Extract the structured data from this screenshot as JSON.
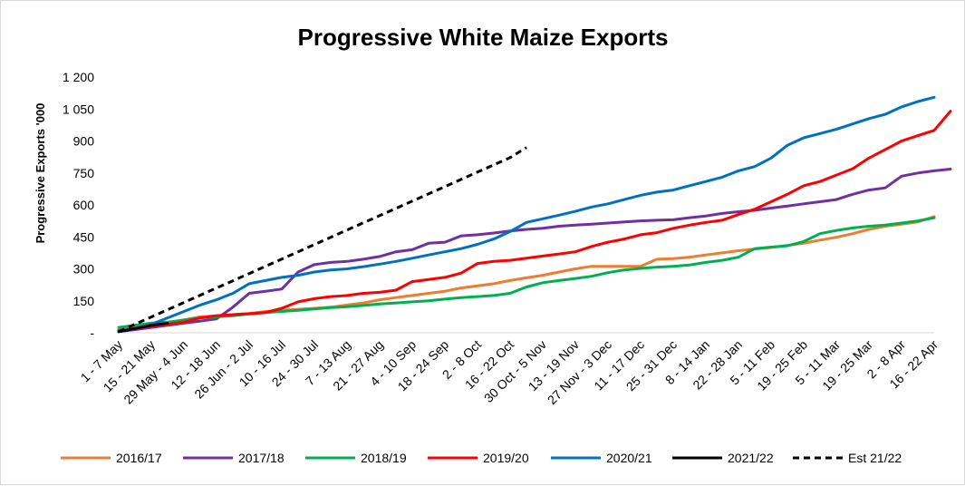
{
  "chart_data": {
    "type": "line",
    "title": "Progressive White Maize Exports",
    "xlabel": "",
    "ylabel": "Progressive Exports '000",
    "ylim": [
      0,
      1200
    ],
    "yticks": [
      0,
      150,
      300,
      450,
      600,
      750,
      900,
      1050,
      1200
    ],
    "ytick_labels": [
      "-",
      "150",
      "300",
      "450",
      "600",
      "750",
      "900",
      "1 050",
      "1 200"
    ],
    "xtick_labels": [
      "1 - 7 May",
      "15 - 21 May",
      "29 May - 4 Jun",
      "12 - 18 Jun",
      "26 Jun - 2 Jul",
      "10 - 16 Jul",
      "24 - 30 Jul",
      "7 - 13 Aug",
      "21 - 27 Aug",
      "4 - 10 Sep",
      "18 - 24 Sep",
      "2 - 8 Oct",
      "16 - 22 Oct",
      "30 Oct - 5 Nov",
      "13 - 19 Nov",
      "27 Nov - 3 Dec",
      "11 - 17 Dec",
      "25 - 31 Dec",
      "8 - 14 Jan",
      "22 - 28 Jan",
      "5 - 11 Feb",
      "19 - 25 Feb",
      "5 - 11 Mar",
      "19 - 25 Mar",
      "2 - 8 Apr",
      "16 - 22 Apr"
    ],
    "grid": false,
    "legend": "bottom",
    "series": [
      {
        "name": "2016/17",
        "color": "#ED7D31",
        "dash": "solid",
        "values": [
          15,
          25,
          35,
          45,
          60,
          75,
          80,
          85,
          90,
          100,
          105,
          110,
          115,
          120,
          130,
          140,
          155,
          165,
          175,
          185,
          195,
          210,
          220,
          230,
          245,
          258,
          270,
          285,
          300,
          312,
          312,
          312,
          312,
          345,
          348,
          355,
          365,
          375,
          385,
          393,
          400,
          410,
          420,
          435,
          448,
          465,
          485,
          500,
          510,
          520,
          545
        ]
      },
      {
        "name": "2017/18",
        "color": "#7030A0",
        "dash": "solid",
        "values": [
          5,
          15,
          25,
          35,
          45,
          55,
          65,
          120,
          185,
          195,
          205,
          285,
          320,
          330,
          335,
          345,
          358,
          380,
          390,
          420,
          425,
          455,
          460,
          468,
          478,
          485,
          490,
          500,
          505,
          510,
          515,
          520,
          525,
          528,
          530,
          540,
          548,
          560,
          568,
          575,
          585,
          595,
          605,
          615,
          625,
          650,
          670,
          680,
          735,
          750,
          760,
          768
        ]
      },
      {
        "name": "2018/19",
        "color": "#00B050",
        "dash": "solid",
        "values": [
          25,
          35,
          45,
          50,
          60,
          70,
          75,
          80,
          88,
          95,
          100,
          105,
          112,
          118,
          122,
          128,
          135,
          140,
          145,
          150,
          158,
          165,
          170,
          175,
          185,
          215,
          235,
          245,
          255,
          265,
          282,
          295,
          302,
          308,
          312,
          318,
          330,
          340,
          355,
          395,
          402,
          408,
          428,
          465,
          480,
          492,
          500,
          505,
          515,
          525,
          540
        ]
      },
      {
        "name": "2019/20",
        "color": "#FF0000",
        "dash": "solid",
        "values": [
          10,
          20,
          30,
          40,
          50,
          70,
          80,
          85,
          90,
          95,
          115,
          145,
          160,
          170,
          175,
          185,
          190,
          200,
          240,
          250,
          260,
          280,
          325,
          335,
          340,
          350,
          360,
          370,
          380,
          405,
          425,
          440,
          460,
          470,
          490,
          505,
          518,
          528,
          555,
          580,
          615,
          650,
          690,
          710,
          740,
          770,
          820,
          860,
          900,
          925,
          950,
          1040
        ]
      },
      {
        "name": "2020/21",
        "color": "#0070C0",
        "dash": "solid",
        "values": [
          10,
          20,
          40,
          70,
          100,
          130,
          155,
          185,
          230,
          245,
          260,
          270,
          285,
          295,
          300,
          310,
          322,
          335,
          350,
          365,
          380,
          395,
          415,
          440,
          475,
          518,
          535,
          552,
          570,
          590,
          605,
          625,
          645,
          660,
          670,
          690,
          710,
          730,
          760,
          780,
          820,
          880,
          915,
          935,
          955,
          980,
          1005,
          1025,
          1060,
          1085,
          1105
        ]
      },
      {
        "name": "2021/22",
        "color": "#000000",
        "dash": "solid",
        "values": [
          5,
          20,
          35,
          45
        ]
      },
      {
        "name": "Est 21/22",
        "color": "#000000",
        "dash": "dashed",
        "values": [
          5,
          40,
          74,
          108,
          142,
          176,
          210,
          244,
          278,
          312,
          346,
          380,
          414,
          448,
          482,
          516,
          550,
          584,
          618,
          652,
          686,
          720,
          754,
          788,
          822,
          870
        ]
      }
    ]
  },
  "legend_items": [
    "2016/17",
    "2017/18",
    "2018/19",
    "2019/20",
    "2020/21",
    "2021/22",
    "Est 21/22"
  ]
}
